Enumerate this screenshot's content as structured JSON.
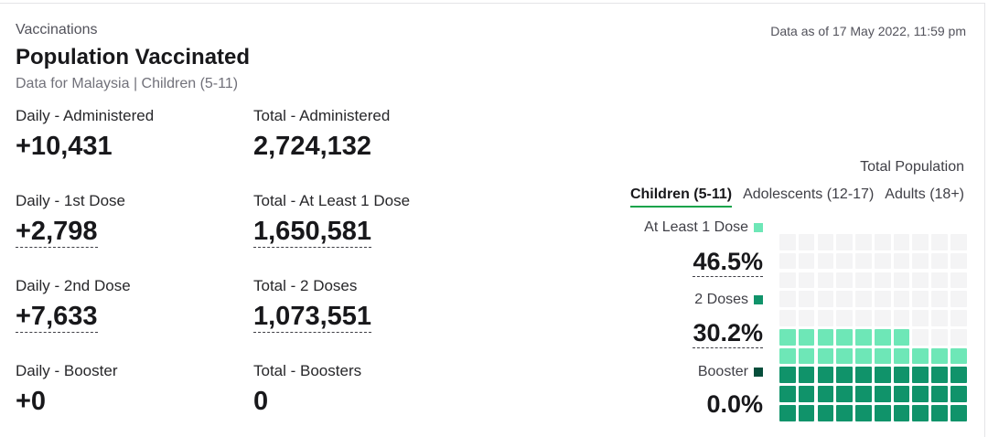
{
  "header": {
    "eyebrow": "Vaccinations",
    "title": "Population Vaccinated",
    "subtitle": "Data for Malaysia | Children (5-11)",
    "as_of": "Data as of 17 May 2022, 11:59 pm"
  },
  "stats": {
    "daily_administered": {
      "label": "Daily - Administered",
      "value": "+10,431"
    },
    "total_administered": {
      "label": "Total - Administered",
      "value": "2,724,132"
    },
    "daily_first": {
      "label": "Daily - 1st Dose",
      "value": "+2,798"
    },
    "total_first": {
      "label": "Total - At Least 1 Dose",
      "value": "1,650,581"
    },
    "daily_second": {
      "label": "Daily - 2nd Dose",
      "value": "+7,633"
    },
    "total_second": {
      "label": "Total - 2 Doses",
      "value": "1,073,551"
    },
    "daily_booster": {
      "label": "Daily - Booster",
      "value": "+0"
    },
    "total_booster": {
      "label": "Total - Boosters",
      "value": "0"
    }
  },
  "population": {
    "heading": "Total Population",
    "tabs": [
      "Children (5-11)",
      "Adolescents (12-17)",
      "Adults (18+)"
    ],
    "active_tab": "Children (5-11)",
    "first_dose": {
      "label": "At Least 1 Dose",
      "value": "46.5%",
      "percent": 46.5,
      "color": "#6ee7b7"
    },
    "second_dose": {
      "label": "2 Doses",
      "value": "30.2%",
      "percent": 30.2,
      "color": "#10936a"
    },
    "booster": {
      "label": "Booster",
      "value": "0.0%",
      "percent": 0.0,
      "color": "#064e3b"
    },
    "empty_color": "#f4f4f5",
    "accent": "#16a34a"
  }
}
